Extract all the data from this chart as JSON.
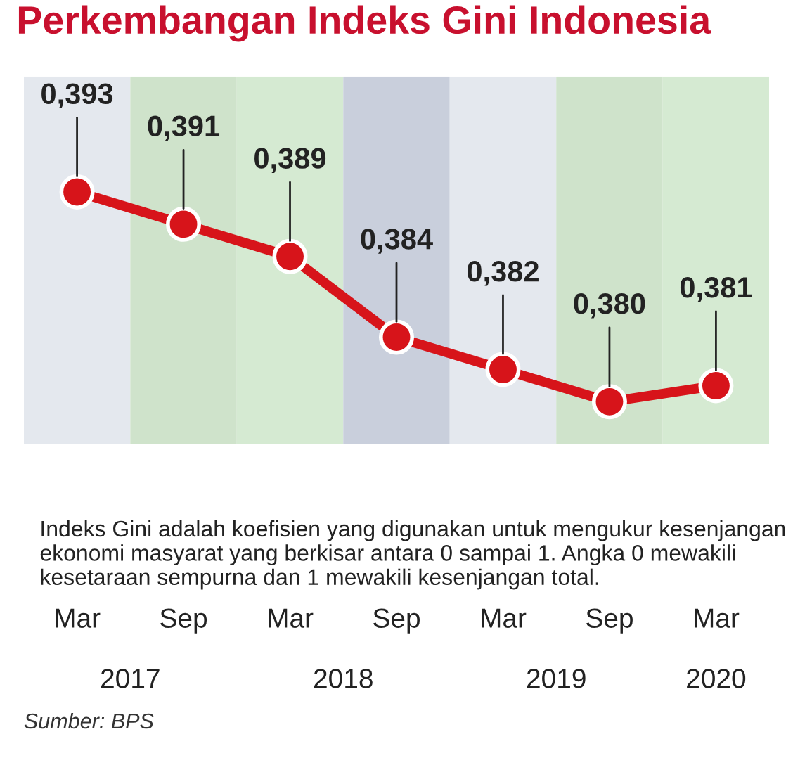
{
  "chart_data": {
    "type": "line",
    "title": "Perkembangan Indeks Gini Indonesia",
    "categories": [
      "Mar",
      "Sep",
      "Mar",
      "Sep",
      "Mar",
      "Sep",
      "Mar"
    ],
    "series": [
      {
        "color": "#d7141a",
        "values": [
          0.393,
          0.391,
          0.389,
          0.384,
          0.382,
          0.38,
          0.381
        ],
        "value_labels": [
          "0,393",
          "0,391",
          "0,389",
          "0,384",
          "0,382",
          "0,380",
          "0,381"
        ]
      }
    ],
    "marker": "circle",
    "line_style": "solid",
    "grid": false,
    "tick_labels": "x",
    "annotations": [
      "Indeks Gini adalah koefisien yang digunakan untuk mengukur kesenjangan ekonomi masyarat yang berkisar antara 0 sampai 1. Angka 0 mewakili kesetaraan sempurna dan 1 mewakili kesenjangan total.",
      "2017",
      "2018",
      "2019",
      "2020",
      "Sumber: BPS"
    ]
  }
}
